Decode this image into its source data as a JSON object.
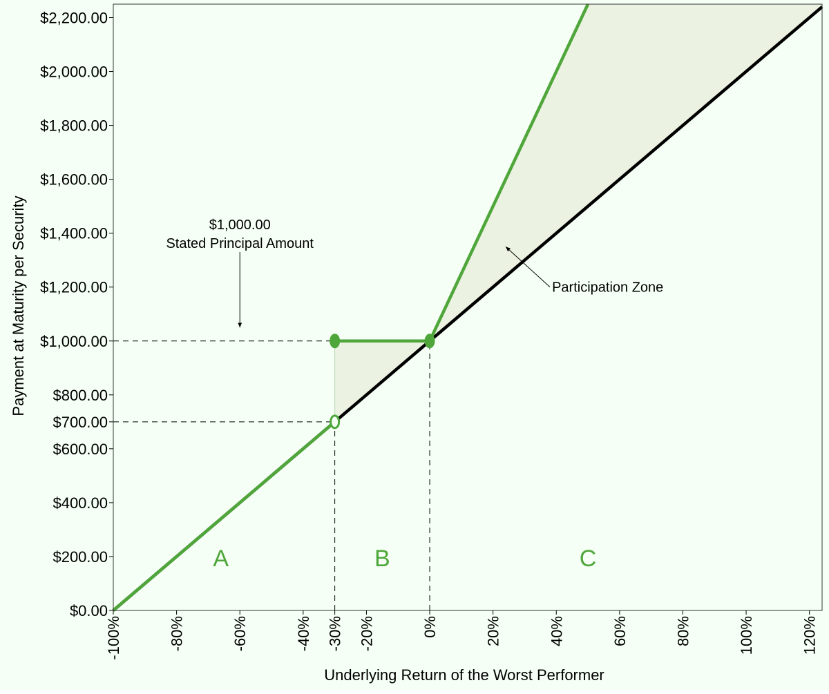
{
  "colors": {
    "background": "#F5FFF5",
    "plot_bg": "#F5FFF5",
    "zone_fill": "#EBF2E1",
    "green": "#4FA63A",
    "black": "#000000"
  },
  "chart_data": {
    "type": "line",
    "title": "",
    "xlabel": "Underlying Return of the Worst Performer",
    "ylabel": "Payment at Maturity per Security",
    "xlim": [
      -100,
      124
    ],
    "ylim": [
      0,
      2250
    ],
    "x_ticks": [
      {
        "value": -100,
        "label": "-100%"
      },
      {
        "value": -80,
        "label": "-80%"
      },
      {
        "value": -60,
        "label": "-60%"
      },
      {
        "value": -40,
        "label": "-40%"
      },
      {
        "value": -30,
        "label": "-30%"
      },
      {
        "value": -20,
        "label": "-20%"
      },
      {
        "value": 0,
        "label": "0%"
      },
      {
        "value": 20,
        "label": "20%"
      },
      {
        "value": 40,
        "label": "40%"
      },
      {
        "value": 60,
        "label": "60%"
      },
      {
        "value": 80,
        "label": "80%"
      },
      {
        "value": 100,
        "label": "100%"
      },
      {
        "value": 120,
        "label": "120%"
      }
    ],
    "y_ticks": [
      {
        "value": 0,
        "label": "$0.00"
      },
      {
        "value": 200,
        "label": "$200.00"
      },
      {
        "value": 400,
        "label": "$400.00"
      },
      {
        "value": 600,
        "label": "$600.00"
      },
      {
        "value": 700,
        "label": "$700.00"
      },
      {
        "value": 800,
        "label": "$800.00"
      },
      {
        "value": 1000,
        "label": "$1,000.00"
      },
      {
        "value": 1200,
        "label": "$1,200.00"
      },
      {
        "value": 1400,
        "label": "$1,400.00"
      },
      {
        "value": 1600,
        "label": "$1,600.00"
      },
      {
        "value": 1800,
        "label": "$1,800.00"
      },
      {
        "value": 2000,
        "label": "$2,000.00"
      },
      {
        "value": 2200,
        "label": "$2,200.00"
      }
    ],
    "series": [
      {
        "color": "#000000",
        "points": [
          [
            -100,
            0
          ],
          [
            124,
            2240
          ]
        ]
      },
      {
        "color": "#4FA63A",
        "points": [
          [
            -100,
            0
          ],
          [
            -30,
            700
          ]
        ]
      },
      {
        "color": "#4FA63A",
        "points": [
          [
            -30,
            1000
          ],
          [
            0,
            1000
          ],
          [
            50,
            2250
          ]
        ]
      }
    ],
    "markers": [
      {
        "x": -30,
        "y": 1000,
        "style": "filled"
      },
      {
        "x": 0,
        "y": 1000,
        "style": "filled"
      },
      {
        "x": -30,
        "y": 700,
        "style": "open"
      }
    ],
    "reference_lines": [
      {
        "from": [
          -100,
          1000
        ],
        "to": [
          0,
          1000
        ]
      },
      {
        "from": [
          -100,
          700
        ],
        "to": [
          -30,
          700
        ]
      },
      {
        "from": [
          -30,
          0
        ],
        "to": [
          -30,
          700
        ]
      },
      {
        "from": [
          0,
          0
        ],
        "to": [
          0,
          1000
        ]
      }
    ],
    "zones": [
      {
        "label": "A",
        "x": -66,
        "y": 200
      },
      {
        "label": "B",
        "x": -15,
        "y": 200
      },
      {
        "label": "C",
        "x": 50,
        "y": 200
      }
    ],
    "annotations": {
      "principal": {
        "line1": "$1,000.00",
        "line2": "Stated Principal Amount",
        "arrow_x": -60,
        "arrow_from_y": 1330,
        "arrow_to_y": 1050
      },
      "participation": {
        "text": "Participation Zone",
        "arrow_from": [
          38,
          1200
        ],
        "arrow_to": [
          24,
          1350
        ]
      }
    }
  }
}
